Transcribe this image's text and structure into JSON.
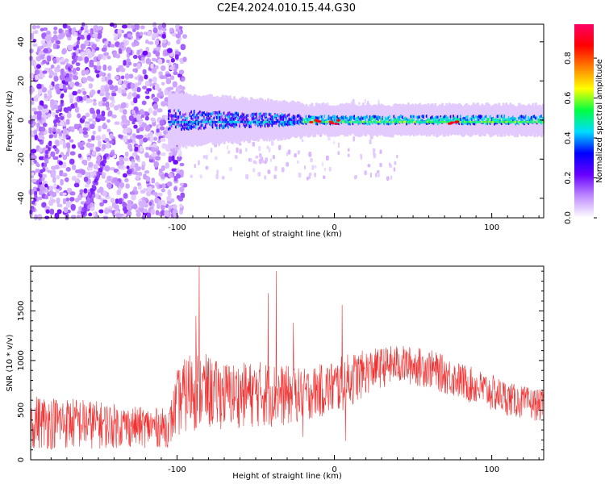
{
  "title": "C2E4.2024.010.15.44.G30",
  "chart_data": [
    {
      "type": "heatmap",
      "xlabel": "Height of straight line (km)",
      "ylabel": "Frequency (Hz)",
      "xlim": [
        -193,
        133
      ],
      "ylim": [
        -50,
        49
      ],
      "xticks": [
        -100,
        0,
        100
      ],
      "yticks": [
        -40,
        -20,
        0,
        20,
        40
      ],
      "colorbar": {
        "label": "Normalized spectral amplitude",
        "range": [
          0,
          0.97
        ],
        "ticks": [
          0,
          0.2,
          0.4,
          0.6,
          0.8
        ],
        "tick_labels": [
          "0.0",
          "0.2",
          "0.4",
          "0.6",
          "0.8"
        ],
        "colormap": [
          "#ffffff",
          "#c08cff",
          "#6a00ff",
          "#0000ff",
          "#00ddff",
          "#00ff40",
          "#ffff00",
          "#ff8000",
          "#ff0000",
          "#ff0066"
        ]
      },
      "features": {
        "carrier_band_center_hz": 0,
        "carrier_band_start_km": -105,
        "diagonal_tracks": [
          {
            "from": [
              -193,
              -48
            ],
            "to": [
              -160,
              49
            ]
          },
          {
            "from": [
              -160,
              -48
            ],
            "to": [
              -145,
              -18
            ]
          }
        ],
        "peak_amplitude_near_km": [
          -12,
          0,
          75
        ]
      }
    },
    {
      "type": "line",
      "xlabel": "Height of straight line (km)",
      "ylabel": "SNR (10 * v/v)",
      "xlim": [
        -193,
        133
      ],
      "ylim": [
        0,
        1950
      ],
      "xticks": [
        -100,
        0,
        100
      ],
      "yticks": [
        0,
        500,
        1000,
        1500
      ],
      "color": "#f03232",
      "envelope": {
        "x": [
          -193,
          -160,
          -130,
          -105,
          -100,
          -90,
          -75,
          -60,
          -45,
          -30,
          -20,
          -10,
          0,
          10,
          25,
          40,
          60,
          80,
          100,
          115,
          133
        ],
        "low": [
          100,
          100,
          120,
          120,
          220,
          280,
          300,
          320,
          320,
          330,
          380,
          420,
          430,
          520,
          700,
          760,
          720,
          600,
          480,
          420,
          380
        ],
        "high": [
          660,
          620,
          540,
          520,
          900,
          1150,
          1000,
          980,
          1000,
          950,
          920,
          960,
          1010,
          1080,
          1120,
          1160,
          1120,
          980,
          860,
          760,
          700
        ]
      },
      "spikes": [
        {
          "x": -86,
          "y": 1950
        },
        {
          "x": -88,
          "y": 1450
        },
        {
          "x": -42,
          "y": 1680
        },
        {
          "x": -37,
          "y": 1900
        },
        {
          "x": -26,
          "y": 1380
        },
        {
          "x": 5,
          "y": 1560
        }
      ],
      "dips": [
        {
          "x": 7,
          "y": 190
        },
        {
          "x": -20,
          "y": 230
        }
      ]
    }
  ]
}
